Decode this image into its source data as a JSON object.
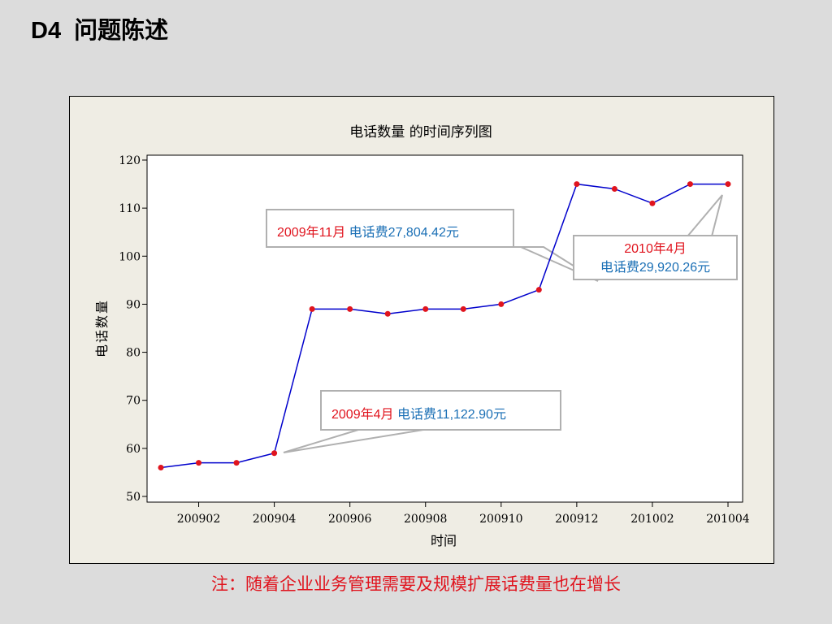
{
  "slide": {
    "code": "D4",
    "title": "问题陈述"
  },
  "note": "注：随着企业业务管理需要及规模扩展话费量也在增长",
  "callouts": [
    {
      "id": "nov-2009",
      "date": "2009年11月",
      "fee": "电话费27,804.42元"
    },
    {
      "id": "apr-2010",
      "date": "2010年4月",
      "fee": "电话费29,920.26元"
    },
    {
      "id": "apr-2009",
      "date": "2009年4月",
      "fee": "电话费11,122.90元"
    }
  ],
  "colors": {
    "line": "#0000cc",
    "marker": "#e0141e",
    "callout_date": "#e0141e",
    "callout_fee": "#1a6fb5",
    "callout_border": "#b0b0b0"
  },
  "chart_data": {
    "type": "line",
    "title": "电话数量 的时间序列图",
    "xlabel": "时间",
    "ylabel": "电话数量",
    "x": [
      "200901",
      "200902",
      "200903",
      "200904",
      "200905",
      "200906",
      "200907",
      "200908",
      "200909",
      "200910",
      "200911",
      "200912",
      "201001",
      "201002",
      "201003",
      "201004"
    ],
    "x_tick_labels": [
      "200902",
      "200904",
      "200906",
      "200908",
      "200910",
      "200912",
      "201002",
      "201004"
    ],
    "series": [
      {
        "values": [
          56,
          57,
          57,
          59,
          89,
          89,
          88,
          89,
          89,
          90,
          93,
          115,
          114,
          111,
          115,
          115
        ]
      }
    ],
    "ylim": [
      50,
      120
    ],
    "yticks": [
      50,
      60,
      70,
      80,
      90,
      100,
      110,
      120
    ],
    "grid": false,
    "legend": "none"
  }
}
